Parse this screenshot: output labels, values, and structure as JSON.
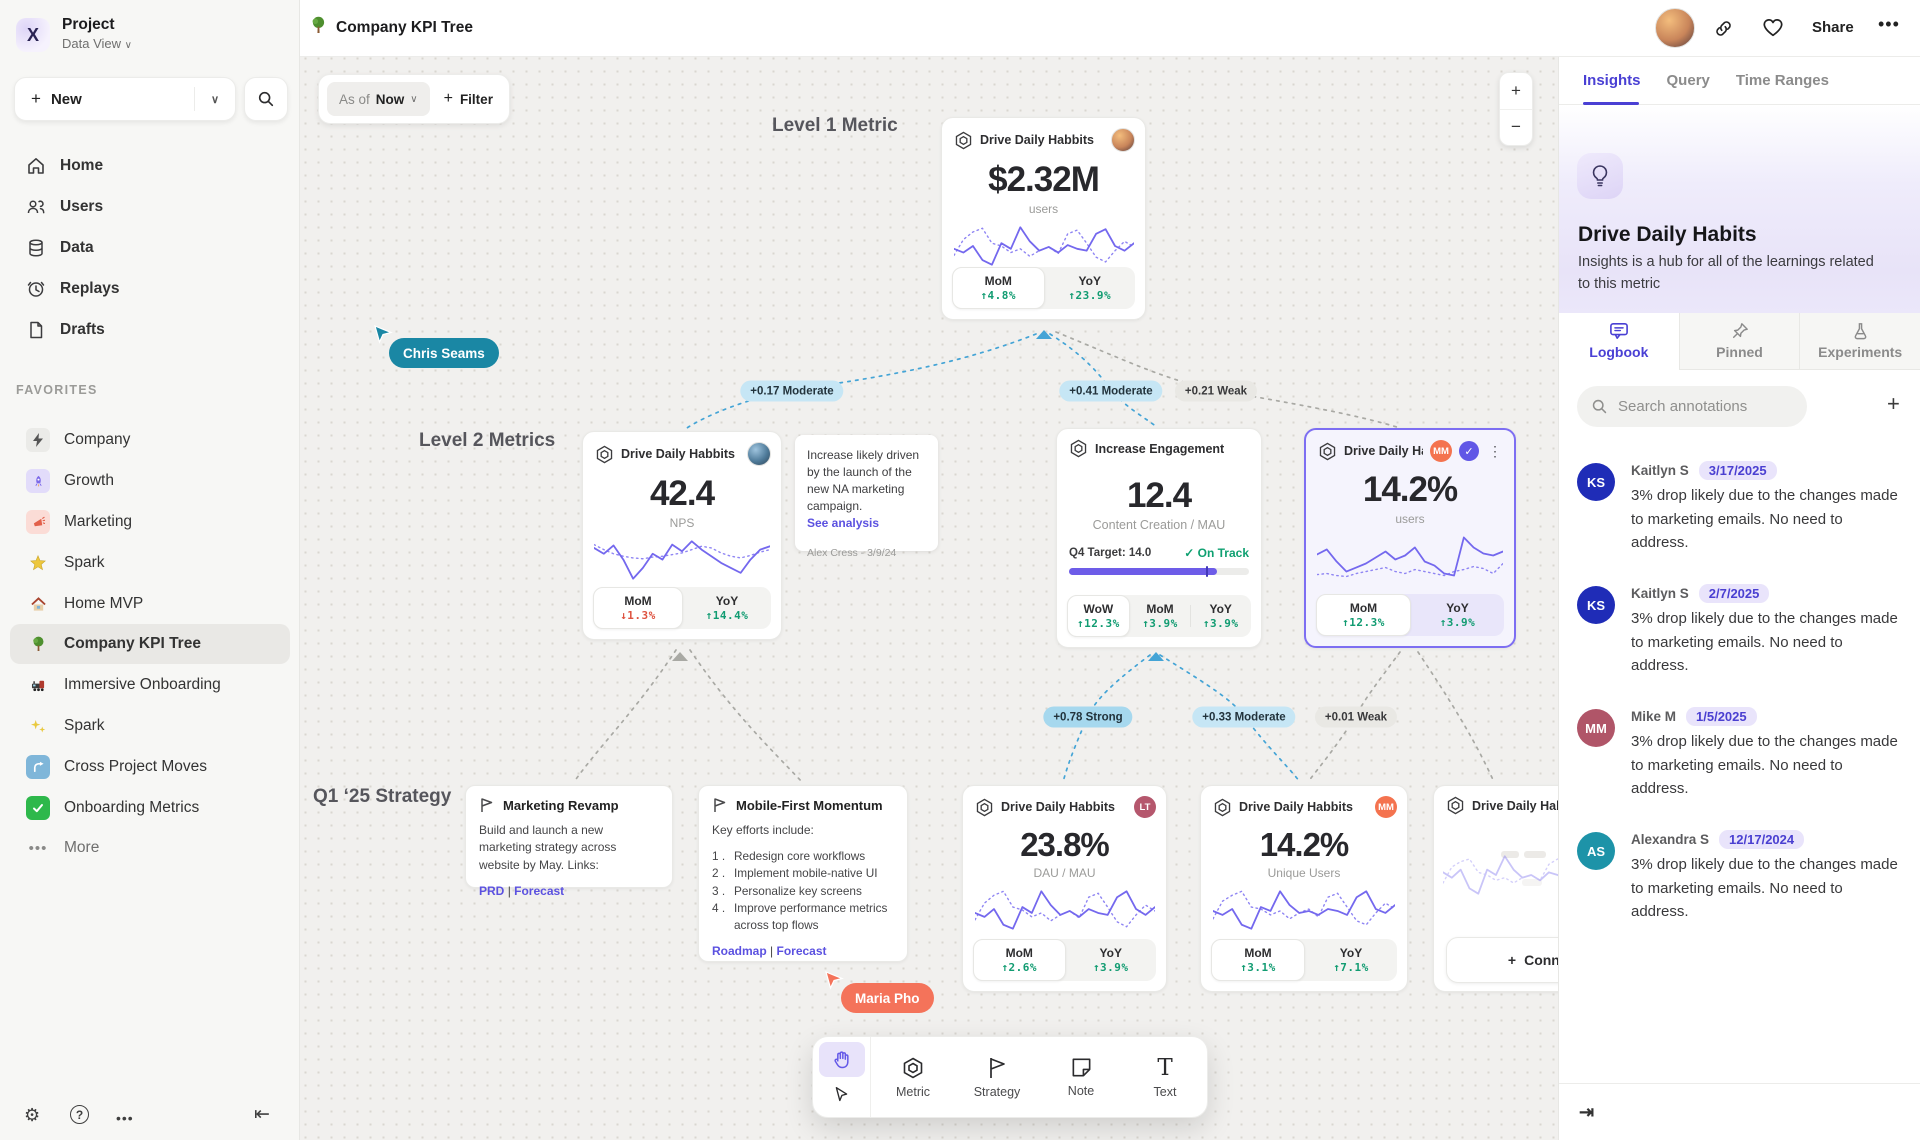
{
  "topbar": {
    "title": "Company KPI Tree",
    "share_label": "Share"
  },
  "sidebar": {
    "project_name": "Project",
    "project_view": "Data View",
    "new_label": "New",
    "nav": [
      {
        "label": "Home"
      },
      {
        "label": "Users"
      },
      {
        "label": "Data"
      },
      {
        "label": "Replays"
      },
      {
        "label": "Drafts"
      }
    ],
    "favorites_label": "FAVORITES",
    "favorites": [
      {
        "label": "Company"
      },
      {
        "label": "Growth"
      },
      {
        "label": "Marketing"
      },
      {
        "label": "Spark"
      },
      {
        "label": "Home MVP"
      },
      {
        "label": "Company KPI Tree"
      },
      {
        "label": "Immersive Onboarding"
      },
      {
        "label": "Spark"
      },
      {
        "label": "Cross Project Moves"
      },
      {
        "label": "Onboarding Metrics"
      }
    ],
    "more_label": "More"
  },
  "canvas": {
    "asof_label": "As of",
    "asof_value": "Now",
    "filter_label": "Filter",
    "zoom_in": "+",
    "zoom_out": "−",
    "section_labels": {
      "level1": "Level 1 Metric",
      "level2": "Level 2 Metrics",
      "strategy": "Q1 ‘25 Strategy"
    },
    "cursors": {
      "chris": "Chris Seams",
      "maria": "Maria Pho"
    },
    "correlations": [
      {
        "label": "+0.17 Moderate"
      },
      {
        "label": "+0.41 Moderate"
      },
      {
        "label": "+0.21 Weak"
      },
      {
        "label": "+0.78 Strong"
      },
      {
        "label": "+0.33 Moderate"
      },
      {
        "label": "+0.01 Weak"
      }
    ],
    "cards": {
      "level1": {
        "title": "Drive Daily Habbits",
        "value": "$2.32M",
        "unit": "users",
        "stats": [
          {
            "label": "MoM",
            "value": "↑4.8%"
          },
          {
            "label": "YoY",
            "value": "↑23.9%"
          }
        ],
        "spark": {
          "solid": [
            42,
            38,
            45,
            30,
            25,
            48,
            42,
            65,
            50,
            40,
            44,
            38,
            46,
            42,
            40,
            58,
            63,
            45,
            40,
            48
          ],
          "dotted": [
            35,
            52,
            60,
            64,
            48,
            45,
            38,
            42,
            34,
            40,
            44,
            37,
            58,
            62,
            48,
            33,
            28,
            40,
            50,
            44
          ]
        }
      },
      "l2_habits": {
        "title": "Drive Daily Habbits",
        "value": "42.4",
        "unit": "NPS",
        "stats": [
          {
            "label": "MoM",
            "value": "↓1.3%"
          },
          {
            "label": "YoY",
            "value": "↑14.4%"
          }
        ],
        "spark": {
          "solid": [
            62,
            55,
            65,
            48,
            25,
            38,
            55,
            48,
            66,
            58,
            70,
            60,
            52,
            44,
            38,
            32,
            48,
            60,
            64
          ],
          "dotted": [
            66,
            60,
            55,
            52,
            50,
            49,
            51,
            52,
            54,
            56,
            60,
            64,
            62,
            56,
            52,
            50,
            53,
            57,
            60
          ]
        }
      },
      "note": {
        "text": "Increase likely driven by the launch of the new NA marketing campaign.",
        "link": "See analysis",
        "author": "Alex Cress - 3/9/24"
      },
      "engagement": {
        "title": "Increase Engagement",
        "value": "12.4",
        "unit": "Content Creation / MAU",
        "target_label": "Q4 Target: 14.0",
        "status": "On Track",
        "progress": 82,
        "tick": 76,
        "stats": [
          {
            "label": "WoW",
            "value": "↑12.3%"
          },
          {
            "label": "MoM",
            "value": "↑3.9%"
          },
          {
            "label": "YoY",
            "value": "↑3.9%"
          }
        ]
      },
      "l2_selected": {
        "title": "Drive Daily Habb..",
        "badge": "MM",
        "value": "14.2%",
        "unit": "users",
        "stats": [
          {
            "label": "MoM",
            "value": "↑12.3%"
          },
          {
            "label": "YoY",
            "value": "↑3.9%"
          }
        ],
        "spark": {
          "solid": [
            55,
            60,
            48,
            38,
            42,
            46,
            52,
            58,
            50,
            54,
            62,
            48,
            44,
            36,
            34,
            72,
            62,
            56,
            54,
            58
          ],
          "dotted": [
            35,
            36,
            34,
            33,
            36,
            38,
            40,
            42,
            38,
            36,
            40,
            38,
            36,
            34,
            38,
            40,
            43,
            41,
            36,
            46
          ]
        }
      },
      "strat_marketing": {
        "title": "Marketing Revamp",
        "body": "Build and launch a new marketing strategy across website by May. Links:",
        "links": [
          "PRD",
          "Forecast"
        ]
      },
      "strat_mobile": {
        "title": "Mobile-First Momentum",
        "intro": "Key efforts include:",
        "items": [
          "Redesign core workflows",
          "Implement mobile-native UI",
          "Personalize key screens",
          "Improve performance metrics across top flows"
        ],
        "links": [
          "Roadmap",
          "Forecast"
        ]
      },
      "l3_dau": {
        "title": "Drive Daily Habbits",
        "badge": "LT",
        "value": "23.8%",
        "unit": "DAU / MAU",
        "stats": [
          {
            "label": "MoM",
            "value": "↑2.6%"
          },
          {
            "label": "YoY",
            "value": "↑3.9%"
          }
        ],
        "spark": {
          "solid": [
            40,
            36,
            44,
            28,
            24,
            46,
            40,
            62,
            48,
            38,
            42,
            36,
            44,
            40,
            38,
            56,
            62,
            44,
            38,
            46
          ],
          "dotted": [
            33,
            50,
            58,
            62,
            46,
            43,
            36,
            40,
            32,
            38,
            42,
            35,
            56,
            60,
            46,
            31,
            26,
            38,
            48,
            42
          ]
        }
      },
      "l3_unique": {
        "title": "Drive Daily Habbits",
        "badge": "MM",
        "value": "14.2%",
        "unit": "Unique Users",
        "stats": [
          {
            "label": "MoM",
            "value": "↑3.1%"
          },
          {
            "label": "YoY",
            "value": "↑7.1%"
          }
        ],
        "spark": {
          "solid": [
            44,
            40,
            46,
            30,
            26,
            48,
            44,
            64,
            50,
            42,
            44,
            40,
            46,
            44,
            40,
            58,
            64,
            46,
            42,
            50
          ],
          "dotted": [
            36,
            54,
            60,
            64,
            48,
            46,
            40,
            44,
            36,
            42,
            46,
            38,
            58,
            62,
            48,
            34,
            30,
            42,
            52,
            46
          ]
        }
      },
      "l3_partial": {
        "title": "Drive Daily Hab",
        "connect_label": "Connect",
        "spark": {
          "solid": [
            48,
            44,
            50,
            36,
            32,
            50,
            46,
            60,
            50,
            44,
            46,
            42,
            48,
            46,
            42,
            56,
            60,
            48
          ],
          "dotted": [
            40,
            52,
            56,
            58,
            48,
            46,
            42,
            44,
            40,
            44,
            46,
            42,
            54,
            58,
            48,
            38,
            36,
            44
          ]
        }
      }
    },
    "toolbar": {
      "tools": [
        {
          "label": "Metric"
        },
        {
          "label": "Strategy"
        },
        {
          "label": "Note"
        },
        {
          "label": "Text"
        }
      ]
    }
  },
  "right_panel": {
    "tabs": [
      {
        "label": "Insights"
      },
      {
        "label": "Query"
      },
      {
        "label": "Time Ranges"
      }
    ],
    "hero_title": "Drive Daily Habits",
    "hero_desc": "Insights is a hub for all of the learnings related to this metric",
    "subtabs": [
      {
        "label": "Logbook"
      },
      {
        "label": "Pinned"
      },
      {
        "label": "Experiments"
      }
    ],
    "search_placeholder": "Search annotations",
    "annotations": [
      {
        "initials": "KS",
        "name": "Kaitlyn S",
        "date": "3/17/2025",
        "text": "3% drop likely due to the changes made to marketing emails. No need to address.",
        "color": "#1f2cb7"
      },
      {
        "initials": "KS",
        "name": "Kaitlyn S",
        "date": "2/7/2025",
        "text": "3% drop likely due to the changes made to marketing emails. No need to address.",
        "color": "#1f2cb7"
      },
      {
        "initials": "MM",
        "name": "Mike M",
        "date": "1/5/2025",
        "text": "3% drop likely due to the changes made to marketing emails. No need to address.",
        "color": "#b05568"
      },
      {
        "initials": "AS",
        "name": "Alexandra S",
        "date": "12/17/2024",
        "text": "3% drop likely due to the changes made to marketing emails. No need to address.",
        "color": "#1d93a8"
      }
    ]
  },
  "colors": {
    "accent": "#5b4fd9",
    "green": "#129c72",
    "red": "#de5340",
    "badge_mm": "#f4734f",
    "badge_lt": "#b5576d",
    "cursor_chris": "#1a87a4",
    "cursor_maria": "#f4735a",
    "spark_solid": "#7468ee",
    "spark_dotted": "#8f85f3",
    "connector_blue": "#44a4d6",
    "connector_gray": "#a9a9a4"
  }
}
